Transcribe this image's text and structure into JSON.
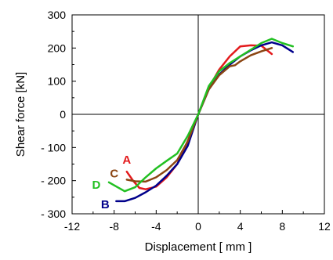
{
  "chart_data": {
    "type": "line",
    "xlabel": "Displacement [ mm ]",
    "ylabel": "Shear force [kN]",
    "xlim": [
      -12,
      12
    ],
    "ylim": [
      -300,
      300
    ],
    "x_ticks": [
      -12,
      -8,
      -4,
      0,
      4,
      8,
      12
    ],
    "x_tick_labels": [
      "-12",
      "-8",
      "-4",
      "0",
      "4",
      "8",
      "12"
    ],
    "y_ticks": [
      300,
      200,
      100,
      0,
      -100,
      -200,
      -300
    ],
    "y_tick_labels": [
      "300",
      "200",
      "100",
      "0",
      "- 100",
      "- 200",
      "- 300"
    ],
    "grid": false,
    "series": [
      {
        "name": "A",
        "color": "#e31a1c",
        "x": [
          -6.8,
          -6.2,
          -5.6,
          -5.0,
          -4.0,
          -3.0,
          -2.0,
          -1.0,
          0.0,
          1.0,
          2.0,
          3.0,
          4.0,
          5.0,
          6.0,
          7.0
        ],
        "y": [
          -173,
          -200,
          -222,
          -226,
          -218,
          -190,
          -150,
          -80,
          0,
          80,
          135,
          175,
          205,
          208,
          207,
          182
        ]
      },
      {
        "name": "B",
        "color": "#00008b",
        "x": [
          -7.8,
          -7.0,
          -6.0,
          -5.0,
          -4.0,
          -3.0,
          -2.0,
          -1.0,
          0.0,
          1.0,
          2.0,
          3.0,
          4.0,
          5.0,
          6.0,
          7.0,
          8.0,
          9.0
        ],
        "y": [
          -262,
          -262,
          -252,
          -235,
          -215,
          -185,
          -150,
          -95,
          0,
          75,
          120,
          150,
          175,
          193,
          208,
          217,
          208,
          188
        ]
      },
      {
        "name": "C",
        "color": "#8b4513",
        "x": [
          -6.8,
          -6.0,
          -5.0,
          -4.0,
          -3.0,
          -2.0,
          -1.0,
          0.0,
          1.0,
          2.0,
          3.0,
          3.5,
          4.0,
          5.0,
          6.0,
          7.0
        ],
        "y": [
          -197,
          -202,
          -203,
          -190,
          -168,
          -138,
          -82,
          0,
          75,
          118,
          145,
          148,
          160,
          178,
          190,
          200
        ]
      },
      {
        "name": "D",
        "color": "#22c022",
        "x": [
          -8.5,
          -7.0,
          -6.0,
          -5.0,
          -4.0,
          -3.0,
          -2.0,
          -1.0,
          0.0,
          1.0,
          2.0,
          3.0,
          4.0,
          5.0,
          6.0,
          7.0,
          8.0,
          9.0
        ],
        "y": [
          -205,
          -232,
          -220,
          -190,
          -163,
          -140,
          -118,
          -65,
          0,
          85,
          130,
          155,
          175,
          195,
          215,
          228,
          215,
          205
        ]
      }
    ]
  }
}
